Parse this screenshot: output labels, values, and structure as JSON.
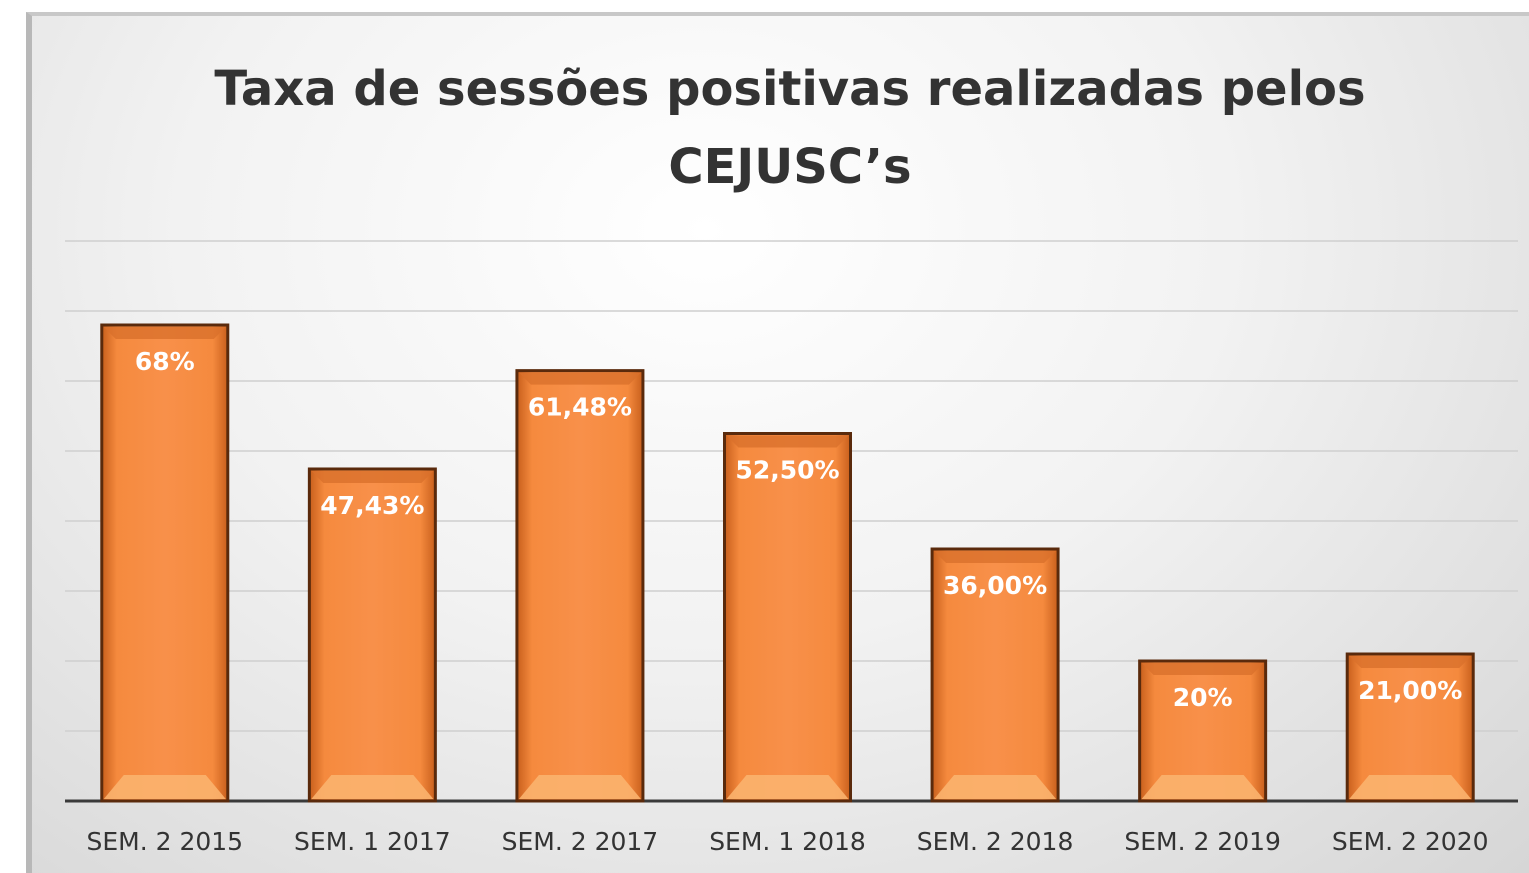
{
  "chart_data": {
    "type": "bar",
    "title": "Taxa de sessões positivas realizadas pelos CEJUSC’s",
    "categories": [
      "SEM. 2 2015",
      "SEM. 1 2017",
      "SEM. 2 2017",
      "SEM. 1 2018",
      "SEM. 2 2018",
      "SEM. 2 2019",
      "SEM. 2 2020"
    ],
    "values": [
      68,
      47.43,
      61.48,
      52.5,
      36,
      20,
      21
    ],
    "value_labels": [
      "68%",
      "47,43%",
      "61,48%",
      "52,50%",
      "36,00%",
      "20%",
      "21,00%"
    ],
    "color": "#f5843a",
    "ylim": [
      0,
      80
    ],
    "yticks": [
      0,
      10,
      20,
      30,
      40,
      50,
      60,
      70,
      80
    ],
    "grid": true
  }
}
